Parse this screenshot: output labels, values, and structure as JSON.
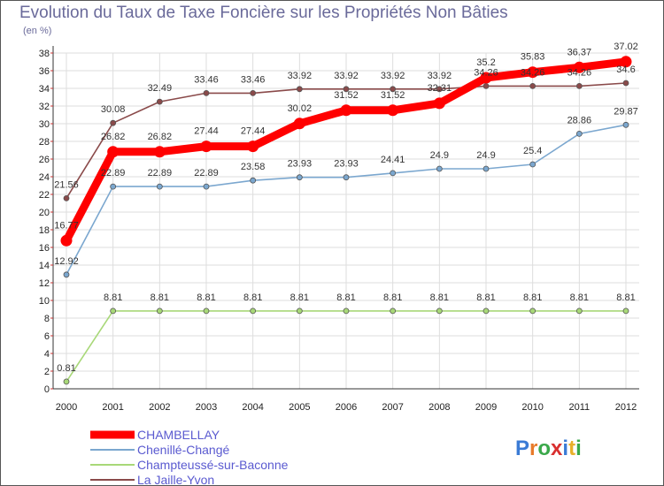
{
  "title": "Evolution du Taux de Taxe Foncière sur les Propriétés Non Bâties",
  "unit_label": "(en %)",
  "brand": "Proxiti",
  "chart_data": {
    "type": "line",
    "x": [
      "2000",
      "2001",
      "2002",
      "2003",
      "2004",
      "2005",
      "2006",
      "2007",
      "2008",
      "2009",
      "2010",
      "2011",
      "2012"
    ],
    "ylim": [
      0,
      38
    ],
    "yticks": [
      0,
      2,
      4,
      6,
      8,
      10,
      12,
      14,
      16,
      18,
      20,
      22,
      24,
      26,
      28,
      30,
      32,
      34,
      36,
      38
    ],
    "grid": true,
    "legend_position": "bottom-left",
    "series": [
      {
        "name": "CHAMBELLAY",
        "color": "#ff0000",
        "values": [
          16.77,
          26.82,
          26.82,
          27.44,
          27.44,
          30.02,
          31.52,
          31.52,
          32.31,
          35.2,
          35.83,
          36.37,
          37.02
        ],
        "labels": [
          "16.77",
          "26.82",
          "26.82",
          "27.44",
          "27.44",
          "30.02",
          "31.52",
          "31.52",
          "32.31",
          "35.2",
          "35.83",
          "36.37",
          "37.02"
        ]
      },
      {
        "name": "Chenillé-Changé",
        "color": "#7ba7cf",
        "values": [
          12.92,
          22.89,
          22.89,
          22.89,
          23.58,
          23.93,
          23.93,
          24.41,
          24.9,
          24.9,
          25.4,
          28.86,
          29.87
        ],
        "labels": [
          "12.92",
          "22.89",
          "22.89",
          "22.89",
          "23.58",
          "23.93",
          "23.93",
          "24.41",
          "24.9",
          "24.9",
          "25.4",
          "28.86",
          "29.87"
        ]
      },
      {
        "name": "Champteussé-sur-Baconne",
        "color": "#a8d878",
        "values": [
          0.81,
          8.81,
          8.81,
          8.81,
          8.81,
          8.81,
          8.81,
          8.81,
          8.81,
          8.81,
          8.81,
          8.81,
          8.81
        ],
        "labels": [
          "0.81",
          "8.81",
          "8.81",
          "8.81",
          "8.81",
          "8.81",
          "8.81",
          "8.81",
          "8.81",
          "8.81",
          "8.81",
          "8.81",
          "8.81"
        ]
      },
      {
        "name": "La Jaille-Yvon",
        "color": "#8a4a4a",
        "values": [
          21.56,
          30.08,
          32.49,
          33.46,
          33.46,
          33.92,
          33.92,
          33.92,
          33.92,
          34.26,
          34.26,
          34.26,
          34.6
        ],
        "labels": [
          "21.56",
          "30.08",
          "32.49",
          "33.46",
          "33.46",
          "33.92",
          "33.92",
          "33.92",
          "33.92",
          "34.26",
          "34.26",
          "34.26",
          "34.6"
        ]
      }
    ]
  }
}
